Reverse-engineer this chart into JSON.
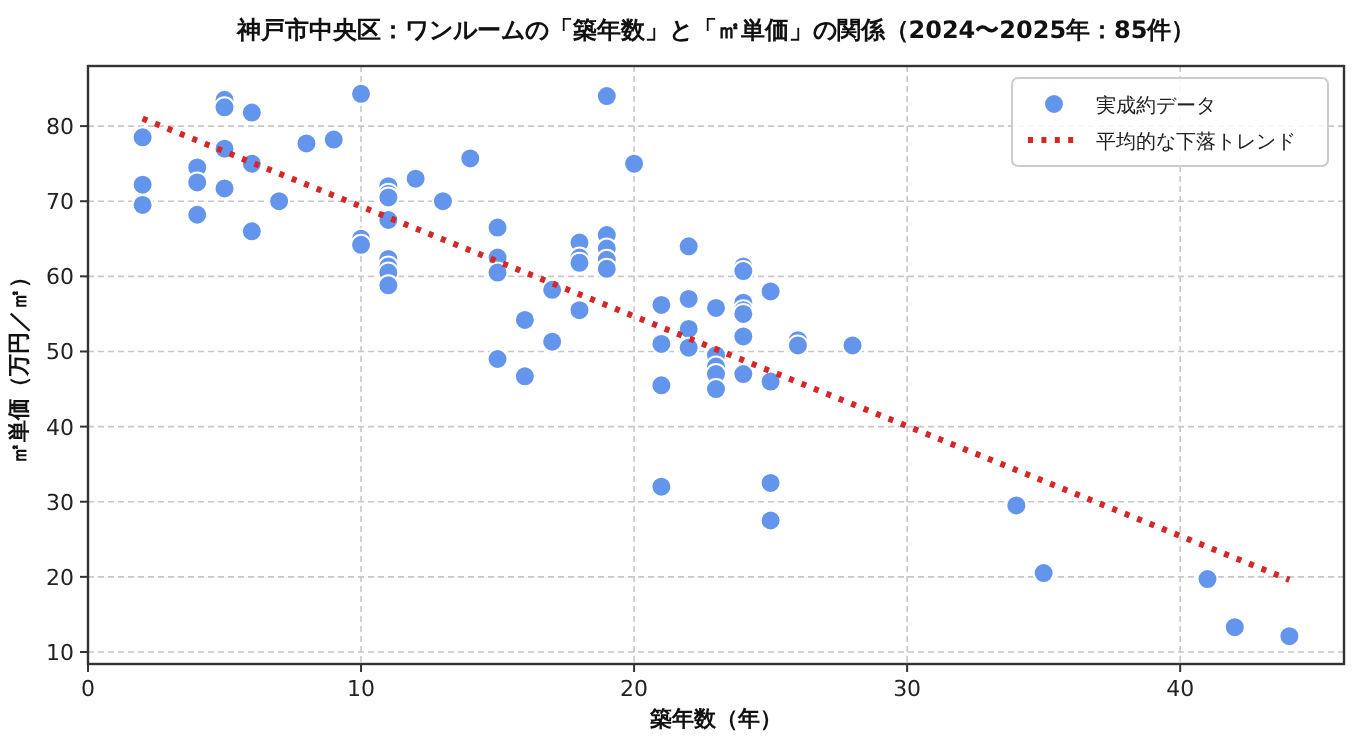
{
  "chart_data": {
    "type": "scatter",
    "title": "神戸市中央区：ワンルームの「築年数」と「㎡単価」の関係（2024〜2025年：85件）",
    "xlabel": "築年数（年）",
    "ylabel": "㎡単価（万円／㎡）",
    "xlim": [
      0,
      46
    ],
    "ylim": [
      8.4,
      88
    ],
    "xticks": [
      0,
      10,
      20,
      30,
      40
    ],
    "yticks": [
      10,
      20,
      30,
      40,
      50,
      60,
      70,
      80
    ],
    "grid": true,
    "legend": "top right",
    "marker": "circle",
    "series": [
      {
        "name": "実成約データ",
        "color": "#6495ed",
        "x": [
          2,
          2,
          2,
          4,
          4,
          4,
          5,
          5,
          5,
          5,
          6,
          6,
          6,
          7,
          8,
          9,
          10,
          10,
          10,
          11,
          11,
          11,
          11,
          11,
          11,
          11,
          11,
          12,
          13,
          14,
          15,
          15,
          15,
          15,
          16,
          16,
          17,
          17,
          18,
          18,
          18,
          18,
          19,
          19,
          19,
          19,
          19,
          20,
          21,
          21,
          21,
          21,
          22,
          22,
          22,
          22,
          23,
          23,
          23,
          23,
          23,
          24,
          24,
          24,
          24,
          24,
          24,
          24,
          25,
          25,
          25,
          25,
          26,
          26,
          28,
          34,
          35,
          41,
          42,
          44
        ],
        "values": [
          78.5,
          72.2,
          69.5,
          74.5,
          72.5,
          68.2,
          83.5,
          82.5,
          77,
          71.7,
          81.8,
          75,
          66,
          70,
          77.7,
          78.2,
          84.3,
          65,
          64.2,
          72,
          71,
          70.5,
          67.5,
          62.3,
          61.3,
          60.5,
          58.8,
          73,
          70,
          75.7,
          66.5,
          62.5,
          60.5,
          49,
          54.2,
          46.7,
          58.2,
          51.3,
          64.5,
          62.5,
          61.8,
          55.5,
          84,
          65.5,
          63.7,
          62.2,
          61,
          75,
          56.2,
          51,
          45.5,
          32,
          64,
          57,
          53,
          50.5,
          55.8,
          49.5,
          48,
          47,
          45,
          61.3,
          60.7,
          56.5,
          55.5,
          55,
          52,
          47,
          58,
          46,
          32.5,
          27.5,
          51.5,
          50.8,
          50.8,
          29.5,
          20.5,
          19.7,
          13.3,
          12.1
        ]
      },
      {
        "name": "平均的な下落トレンド",
        "type": "line",
        "line_style": "dotted",
        "marker": "none",
        "color": "#d62728",
        "x": [
          2,
          44
        ],
        "values": [
          81,
          19.6
        ]
      }
    ]
  }
}
